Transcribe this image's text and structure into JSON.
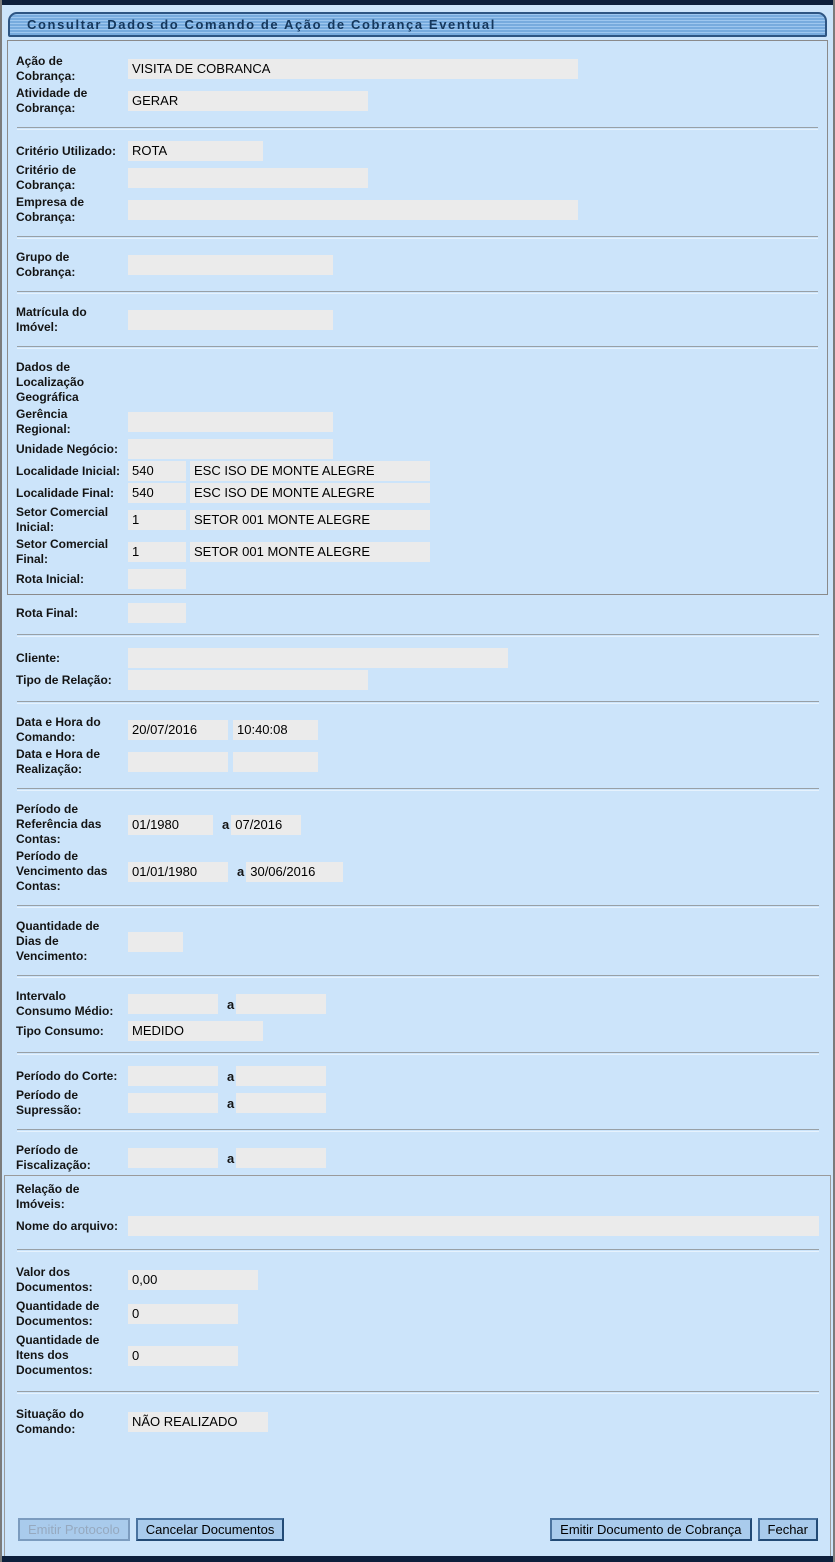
{
  "titlebar": {
    "title": "Consultar Dados do Comando de Ação de Cobrança Eventual"
  },
  "common": {
    "range_separator": "a"
  },
  "colors": {
    "page_background": "#cce4fa",
    "titlebar_stripe_light": "#9ec7ef",
    "titlebar_stripe_dark": "#77abde",
    "titlebar_border": "#2d5583",
    "title_text": "#15375c",
    "field_background": "#ebebeb",
    "button_background": "#a9cbec",
    "button_border": "#224a75",
    "top_bottom_bar": "#0d1f3c"
  },
  "rows": {
    "acao_cobranca": {
      "label": "Ação de Cobrança:",
      "value": "VISITA DE COBRANCA"
    },
    "atividade_cobranca": {
      "label": "Atividade de Cobrança:",
      "value": "GERAR"
    },
    "criterio_utilizado": {
      "label": "Critério Utilizado:",
      "value": "ROTA"
    },
    "criterio_cobranca": {
      "label": "Critério de Cobrança:",
      "value": ""
    },
    "empresa_cobranca": {
      "label": "Empresa de Cobrança:",
      "value": ""
    },
    "grupo_cobranca": {
      "label": "Grupo de Cobrança:",
      "value": ""
    },
    "matricula_imovel": {
      "label": "Matrícula do Imóvel:",
      "value": ""
    },
    "dados_localizacao": {
      "label": "Dados de Localização Geográfica"
    },
    "gerencia_regional": {
      "label": "Gerência Regional:",
      "value": ""
    },
    "unidade_negocio": {
      "label": "Unidade Negócio:",
      "value": ""
    },
    "localidade_inicial": {
      "label": "Localidade Inicial:",
      "code": "540",
      "name": "ESC ISO DE MONTE ALEGRE"
    },
    "localidade_final": {
      "label": "Localidade Final:",
      "code": "540",
      "name": "ESC ISO DE MONTE ALEGRE"
    },
    "setor_comercial_inicial": {
      "label": "Setor Comercial Inicial:",
      "code": "1",
      "name": "SETOR 001 MONTE ALEGRE"
    },
    "setor_comercial_final": {
      "label": "Setor Comercial Final:",
      "code": "1",
      "name": "SETOR 001 MONTE ALEGRE"
    },
    "rota_inicial": {
      "label": "Rota Inicial:",
      "value": ""
    },
    "rota_final": {
      "label": "Rota Final:",
      "value": ""
    },
    "cliente": {
      "label": "Cliente:",
      "value": ""
    },
    "tipo_relacao": {
      "label": "Tipo de Relação:",
      "value": ""
    },
    "data_hora_comando": {
      "label": "Data e Hora do Comando:",
      "date": "20/07/2016",
      "time": "10:40:08"
    },
    "data_hora_realizacao": {
      "label": "Data e Hora de Realização:",
      "date": "",
      "time": ""
    },
    "periodo_referencia_contas": {
      "label": "Período de Referência das Contas:",
      "from": "01/1980",
      "to": "07/2016"
    },
    "periodo_vencimento_contas": {
      "label": "Período de Vencimento das Contas:",
      "from": "01/01/1980",
      "to": "30/06/2016"
    },
    "quantidade_dias_vencimento": {
      "label": "Quantidade de Dias de Vencimento:",
      "value": ""
    },
    "intervalo_consumo_medio": {
      "label": "Intervalo Consumo Médio:",
      "from": "",
      "to": ""
    },
    "tipo_consumo": {
      "label": "Tipo Consumo:",
      "value": "MEDIDO"
    },
    "periodo_corte": {
      "label": "Período do Corte:",
      "from": "",
      "to": ""
    },
    "periodo_supressao": {
      "label": "Período de Supressão:",
      "from": "",
      "to": ""
    },
    "periodo_fiscalizacao": {
      "label": "Período de Fiscalização:",
      "from": "",
      "to": ""
    },
    "relacao_imoveis": {
      "label": "Relação de Imóveis:"
    },
    "nome_arquivo": {
      "label": "Nome do arquivo:",
      "value": ""
    },
    "valor_documentos": {
      "label": "Valor dos Documentos:",
      "value": "0,00"
    },
    "quantidade_documentos": {
      "label": "Quantidade de Documentos:",
      "value": "0"
    },
    "quantidade_itens_documentos": {
      "label": "Quantidade de Itens dos Documentos:",
      "value": "0"
    },
    "situacao_comando": {
      "label": "Situação do Comando:",
      "value": "NÃO REALIZADO"
    }
  },
  "buttons": {
    "emitir_protocolo": {
      "label": "Emitir Protocolo",
      "enabled": false
    },
    "cancelar_documentos": {
      "label": "Cancelar Documentos",
      "enabled": true
    },
    "emitir_documento_cobranca": {
      "label": "Emitir Documento de Cobrança",
      "enabled": true
    },
    "fechar": {
      "label": "Fechar",
      "enabled": true
    }
  }
}
